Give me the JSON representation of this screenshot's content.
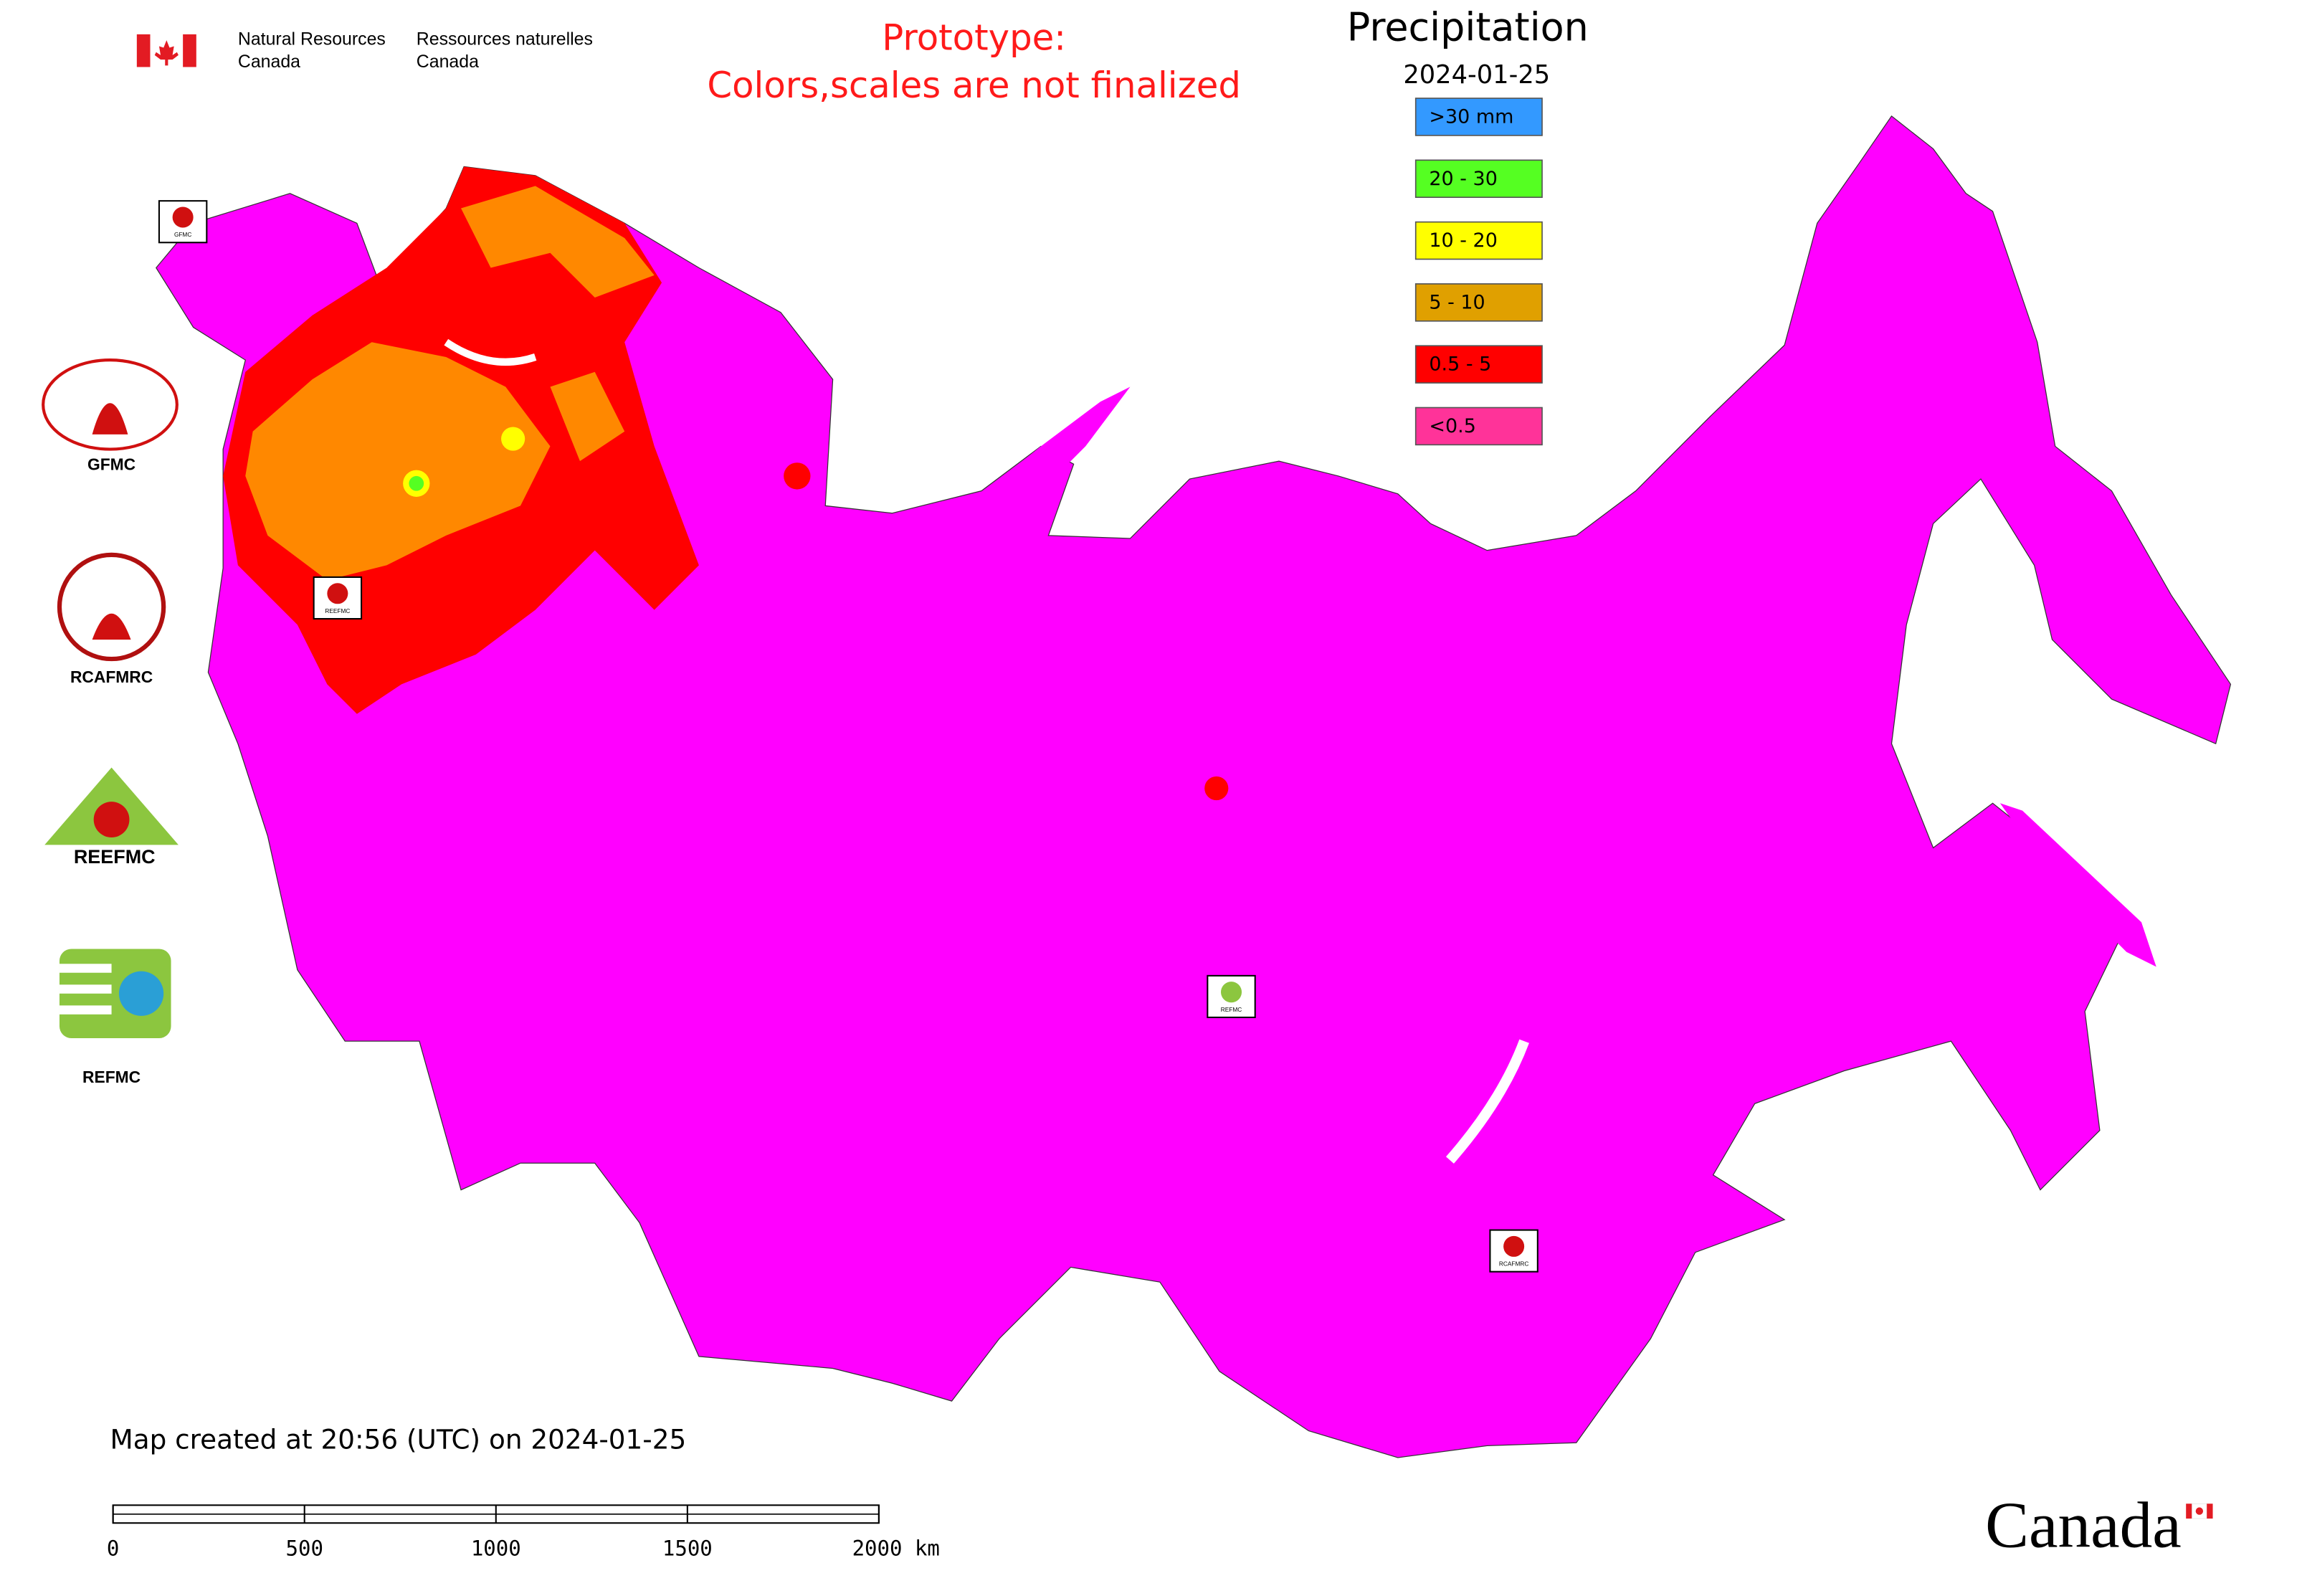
{
  "header": {
    "agency_en": [
      "Natural Resources",
      "Canada"
    ],
    "agency_fr": [
      "Ressources naturelles",
      "Canada"
    ],
    "notice": [
      "Prototype:",
      "Colors,scales are not finalized"
    ],
    "title": "Precipitation",
    "date": "2024-01-25"
  },
  "legend": [
    {
      "label": ">30 mm",
      "color": "#3399ff"
    },
    {
      "label": "20 - 30",
      "color": "#55ff22"
    },
    {
      "label": "10 - 20",
      "color": "#ffff00"
    },
    {
      "label": "5 - 10",
      "color": "#e0a000"
    },
    {
      "label": "0.5 - 5",
      "color": "#ff0000"
    },
    {
      "label": "<0.5",
      "color": "#ff3399"
    }
  ],
  "logos": [
    "GFMC",
    "RCAFMRC",
    "REEFMC",
    "REFMC"
  ],
  "map_markers": [
    "GFMC",
    "REEFMC",
    "REFMC",
    "RCAFMRC"
  ],
  "footer": {
    "created": "Map created at 20:56 (UTC) on 2024-01-25",
    "wordmark": "Canada"
  },
  "scale_bar": {
    "ticks": [
      0,
      500,
      1000,
      1500,
      {
        "value": 2000,
        "label": "2000 km"
      }
    ]
  }
}
